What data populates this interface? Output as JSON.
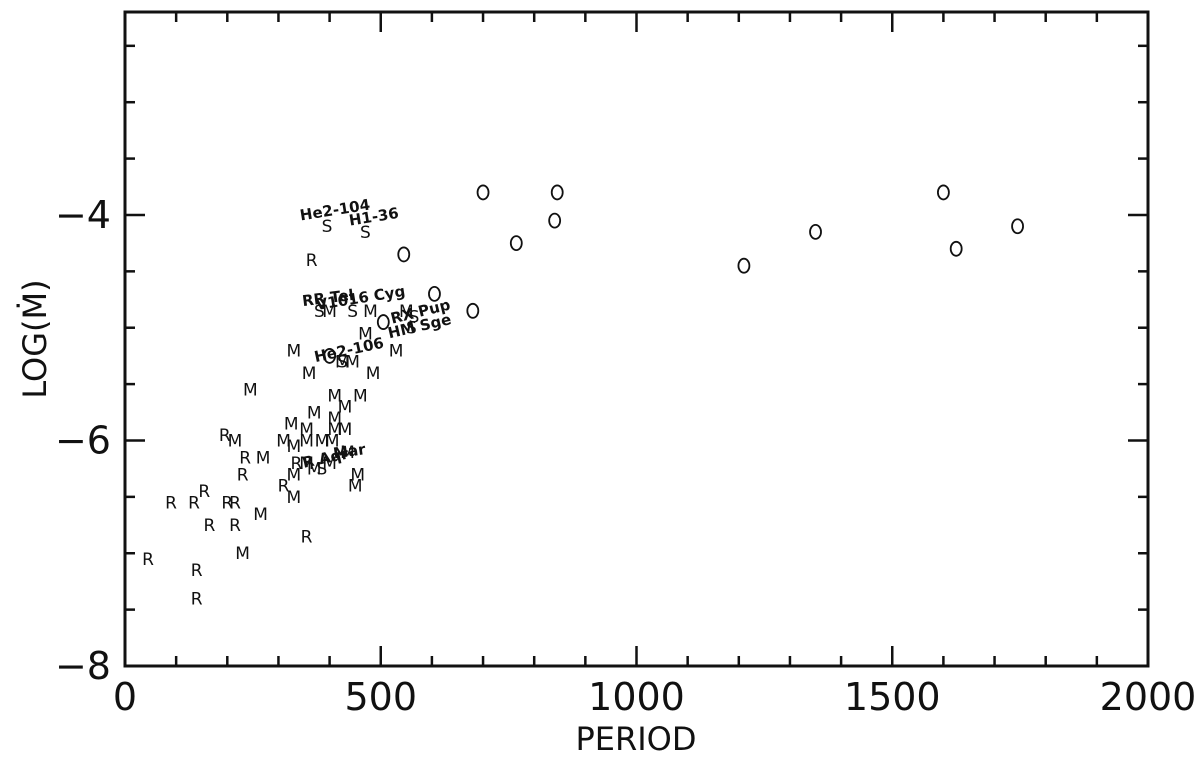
{
  "chart_data": {
    "type": "scatter",
    "title": "",
    "xlabel": "PERIOD",
    "ylabel": "LOG(Ṁ)",
    "xlim": [
      0,
      2000
    ],
    "ylim": [
      -8,
      -2.2
    ],
    "x_ticks": [
      0,
      500,
      1000,
      1500,
      2000
    ],
    "y_ticks": [
      -8,
      -6,
      -4
    ],
    "x_tick_labels": [
      "0",
      "500",
      "1000",
      "1500",
      "2000"
    ],
    "y_tick_labels": [
      "−8",
      "−6",
      "−4"
    ],
    "grid": false,
    "legend": "none",
    "points": [
      {
        "symbol": "O",
        "x": 700,
        "y": -3.8
      },
      {
        "symbol": "O",
        "x": 845,
        "y": -3.8
      },
      {
        "symbol": "O",
        "x": 840,
        "y": -4.05
      },
      {
        "symbol": "O",
        "x": 765,
        "y": -4.25
      },
      {
        "symbol": "O",
        "x": 545,
        "y": -4.35
      },
      {
        "symbol": "O",
        "x": 1600,
        "y": -3.8
      },
      {
        "symbol": "O",
        "x": 1350,
        "y": -4.15
      },
      {
        "symbol": "O",
        "x": 1625,
        "y": -4.3
      },
      {
        "symbol": "O",
        "x": 1745,
        "y": -4.1
      },
      {
        "symbol": "O",
        "x": 1210,
        "y": -4.45
      },
      {
        "symbol": "O",
        "x": 605,
        "y": -4.7
      },
      {
        "symbol": "O",
        "x": 680,
        "y": -4.85
      },
      {
        "symbol": "O",
        "x": 505,
        "y": -4.95
      },
      {
        "symbol": "O",
        "x": 400,
        "y": -5.25
      },
      {
        "symbol": "S",
        "x": 395,
        "y": -4.1
      },
      {
        "symbol": "S",
        "x": 470,
        "y": -4.15
      },
      {
        "symbol": "S",
        "x": 380,
        "y": -4.85
      },
      {
        "symbol": "S",
        "x": 445,
        "y": -4.85
      },
      {
        "symbol": "S",
        "x": 565,
        "y": -4.9
      },
      {
        "symbol": "S",
        "x": 560,
        "y": -5.0
      },
      {
        "symbol": "S",
        "x": 425,
        "y": -5.3
      },
      {
        "symbol": "S",
        "x": 385,
        "y": -6.25
      },
      {
        "symbol": "R",
        "x": 365,
        "y": -4.4
      },
      {
        "symbol": "R",
        "x": 195,
        "y": -5.95
      },
      {
        "symbol": "R",
        "x": 335,
        "y": -6.2
      },
      {
        "symbol": "R",
        "x": 90,
        "y": -6.55
      },
      {
        "symbol": "R",
        "x": 135,
        "y": -6.55
      },
      {
        "symbol": "R",
        "x": 155,
        "y": -6.45
      },
      {
        "symbol": "R",
        "x": 200,
        "y": -6.55
      },
      {
        "symbol": "R",
        "x": 215,
        "y": -6.55
      },
      {
        "symbol": "R",
        "x": 215,
        "y": -6.75
      },
      {
        "symbol": "R",
        "x": 165,
        "y": -6.75
      },
      {
        "symbol": "R",
        "x": 355,
        "y": -6.85
      },
      {
        "symbol": "R",
        "x": 45,
        "y": -7.05
      },
      {
        "symbol": "R",
        "x": 140,
        "y": -7.15
      },
      {
        "symbol": "R",
        "x": 140,
        "y": -7.4
      },
      {
        "symbol": "M",
        "x": 400,
        "y": -4.85
      },
      {
        "symbol": "M",
        "x": 480,
        "y": -4.85
      },
      {
        "symbol": "M",
        "x": 550,
        "y": -4.85
      },
      {
        "symbol": "M",
        "x": 470,
        "y": -5.05
      },
      {
        "symbol": "M",
        "x": 330,
        "y": -5.2
      },
      {
        "symbol": "M",
        "x": 530,
        "y": -5.2
      },
      {
        "symbol": "M",
        "x": 425,
        "y": -5.3
      },
      {
        "symbol": "M",
        "x": 445,
        "y": -5.3
      },
      {
        "symbol": "M",
        "x": 360,
        "y": -5.4
      },
      {
        "symbol": "M",
        "x": 485,
        "y": -5.4
      },
      {
        "symbol": "M",
        "x": 245,
        "y": -5.55
      },
      {
        "symbol": "M",
        "x": 410,
        "y": -5.6
      },
      {
        "symbol": "M",
        "x": 460,
        "y": -5.6
      },
      {
        "symbol": "M",
        "x": 370,
        "y": -5.75
      },
      {
        "symbol": "M",
        "x": 430,
        "y": -5.7
      },
      {
        "symbol": "M",
        "x": 410,
        "y": -5.8
      },
      {
        "symbol": "M",
        "x": 325,
        "y": -5.85
      },
      {
        "symbol": "M",
        "x": 355,
        "y": -5.9
      },
      {
        "symbol": "M",
        "x": 410,
        "y": -5.9
      },
      {
        "symbol": "M",
        "x": 430,
        "y": -5.9
      },
      {
        "symbol": "M",
        "x": 215,
        "y": -6.0
      },
      {
        "symbol": "M",
        "x": 310,
        "y": -6.0
      },
      {
        "symbol": "M",
        "x": 330,
        "y": -6.05
      },
      {
        "symbol": "M",
        "x": 355,
        "y": -6.0
      },
      {
        "symbol": "M",
        "x": 385,
        "y": -6.0
      },
      {
        "symbol": "M",
        "x": 405,
        "y": -6.0
      },
      {
        "symbol": "M",
        "x": 435,
        "y": -6.1
      },
      {
        "symbol": "M",
        "x": 270,
        "y": -6.15
      },
      {
        "symbol": "M",
        "x": 355,
        "y": -6.2
      },
      {
        "symbol": "M",
        "x": 400,
        "y": -6.2
      },
      {
        "symbol": "M",
        "x": 370,
        "y": -6.25
      },
      {
        "symbol": "M",
        "x": 330,
        "y": -6.3
      },
      {
        "symbol": "M",
        "x": 455,
        "y": -6.3
      },
      {
        "symbol": "M",
        "x": 450,
        "y": -6.4
      },
      {
        "symbol": "M",
        "x": 330,
        "y": -6.5
      },
      {
        "symbol": "M",
        "x": 265,
        "y": -6.65
      },
      {
        "symbol": "M",
        "x": 230,
        "y": -7.0
      },
      {
        "symbol": "R",
        "x": 235,
        "y": -6.15
      },
      {
        "symbol": "R",
        "x": 230,
        "y": -6.3
      },
      {
        "symbol": "R",
        "x": 310,
        "y": -6.4
      }
    ],
    "annotations": [
      {
        "text": "He2-104",
        "x": 412,
        "y": -4.0,
        "rotate": -9
      },
      {
        "text": "H1-36",
        "x": 488,
        "y": -4.06,
        "rotate": -9
      },
      {
        "text": "RR Tel",
        "x": 398,
        "y": -4.78,
        "rotate": -7
      },
      {
        "text": "V1016 Cyg",
        "x": 462,
        "y": -4.78,
        "rotate": -9
      },
      {
        "text": "RX Pup",
        "x": 580,
        "y": -4.9,
        "rotate": -14
      },
      {
        "text": "HM Sge",
        "x": 578,
        "y": -5.03,
        "rotate": -13
      },
      {
        "text": "He2-106",
        "x": 440,
        "y": -5.24,
        "rotate": -12
      },
      {
        "text": "R Aqr",
        "x": 394,
        "y": -6.2,
        "rotate": -12
      },
      {
        "text": "Mar",
        "x": 440,
        "y": -6.14,
        "rotate": -8
      }
    ]
  }
}
